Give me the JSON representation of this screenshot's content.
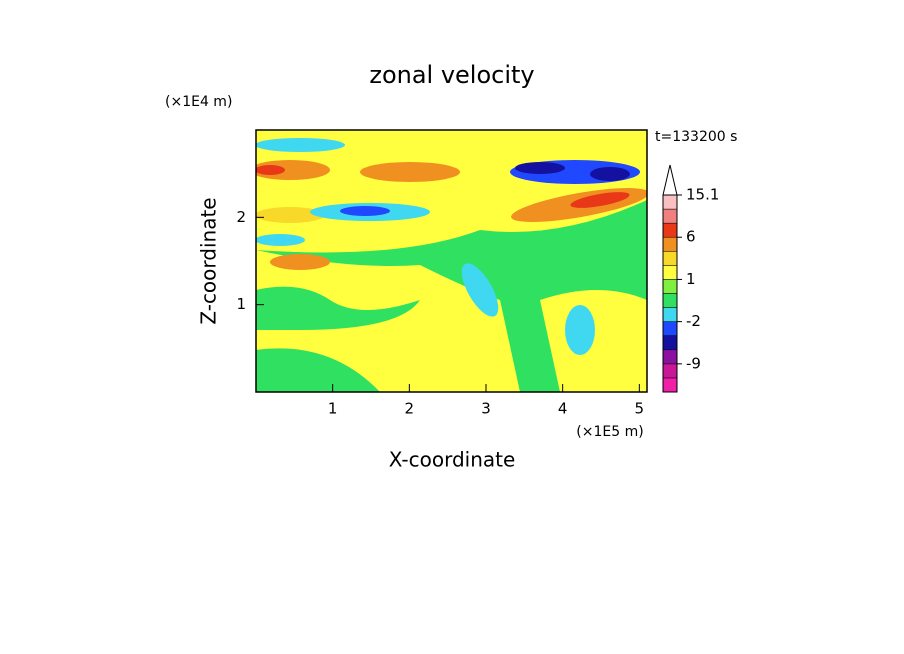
{
  "chart_data": {
    "type": "contour",
    "title": "zonal velocity",
    "xlabel": "X-coordinate",
    "ylabel": "Z-coordinate",
    "x_unit": "(×1E5 m)",
    "y_unit": "(×1E4 m)",
    "annotation": "t=133200 s",
    "xlim": [
      0,
      5.1
    ],
    "ylim": [
      0,
      3
    ],
    "xticks": [
      1,
      2,
      3,
      4,
      5
    ],
    "yticks": [
      1,
      2
    ],
    "colorbar": {
      "levels": [
        -15,
        -12,
        -9,
        -6,
        -3,
        -2,
        -1,
        0,
        1,
        2,
        3,
        6,
        9,
        12,
        15.1
      ],
      "colors": [
        "#f020a8",
        "#c81898",
        "#8c10a0",
        "#1410a0",
        "#2048ff",
        "#40d8f0",
        "#30e060",
        "#80f040",
        "#ffff40",
        "#f8d828",
        "#f09020",
        "#e83818",
        "#f08080",
        "#f8c0c0"
      ],
      "ticks": [
        -9,
        -2,
        1,
        6,
        15.1
      ]
    }
  }
}
